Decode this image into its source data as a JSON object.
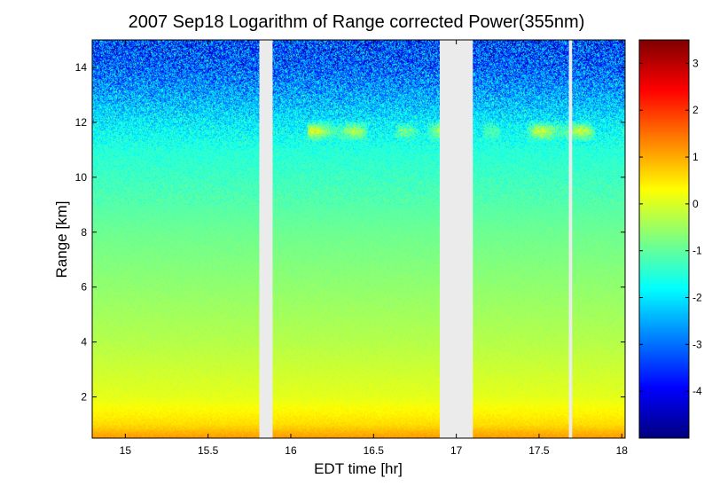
{
  "chart_data": {
    "type": "heatmap",
    "title": "2007 Sep18  Logarithm of Range corrected Power(355nm)",
    "xlabel": "EDT time [hr]",
    "ylabel": "Range [km]",
    "xlim": [
      14.8,
      18.02
    ],
    "ylim": [
      0.5,
      15.0
    ],
    "xticks": [
      15,
      15.5,
      16,
      16.5,
      17,
      17.5,
      18
    ],
    "xtick_labels": [
      "15",
      "15.5",
      "16",
      "16.5",
      "17",
      "17.5",
      "18"
    ],
    "yticks": [
      2,
      4,
      6,
      8,
      10,
      12,
      14
    ],
    "ytick_labels": [
      "2",
      "4",
      "6",
      "8",
      "10",
      "12",
      "14"
    ],
    "colormap": "jet",
    "color_range": [
      -5,
      3.5
    ],
    "colorbar_ticks": [
      3,
      2,
      1,
      0,
      -1,
      -2,
      -3,
      -4
    ],
    "colorbar_tick_labels": [
      "3",
      "2",
      "1",
      "0",
      "-1",
      "-2",
      "-3",
      "-4"
    ],
    "data_gaps_hr": [
      [
        15.81,
        15.89
      ],
      [
        16.9,
        17.1
      ],
      [
        17.68,
        17.7
      ]
    ],
    "cloud_layer_km": [
      11.3,
      12.1
    ],
    "profile": {
      "range_km": [
        0.5,
        1.0,
        2.0,
        4.0,
        6.0,
        8.0,
        10.0,
        11.0,
        12.0,
        13.0,
        14.0,
        15.0
      ],
      "log_power": [
        1.2,
        0.6,
        0.1,
        -0.3,
        -0.6,
        -0.9,
        -1.3,
        -1.5,
        -1.9,
        -2.5,
        -3.1,
        -3.4
      ]
    }
  }
}
